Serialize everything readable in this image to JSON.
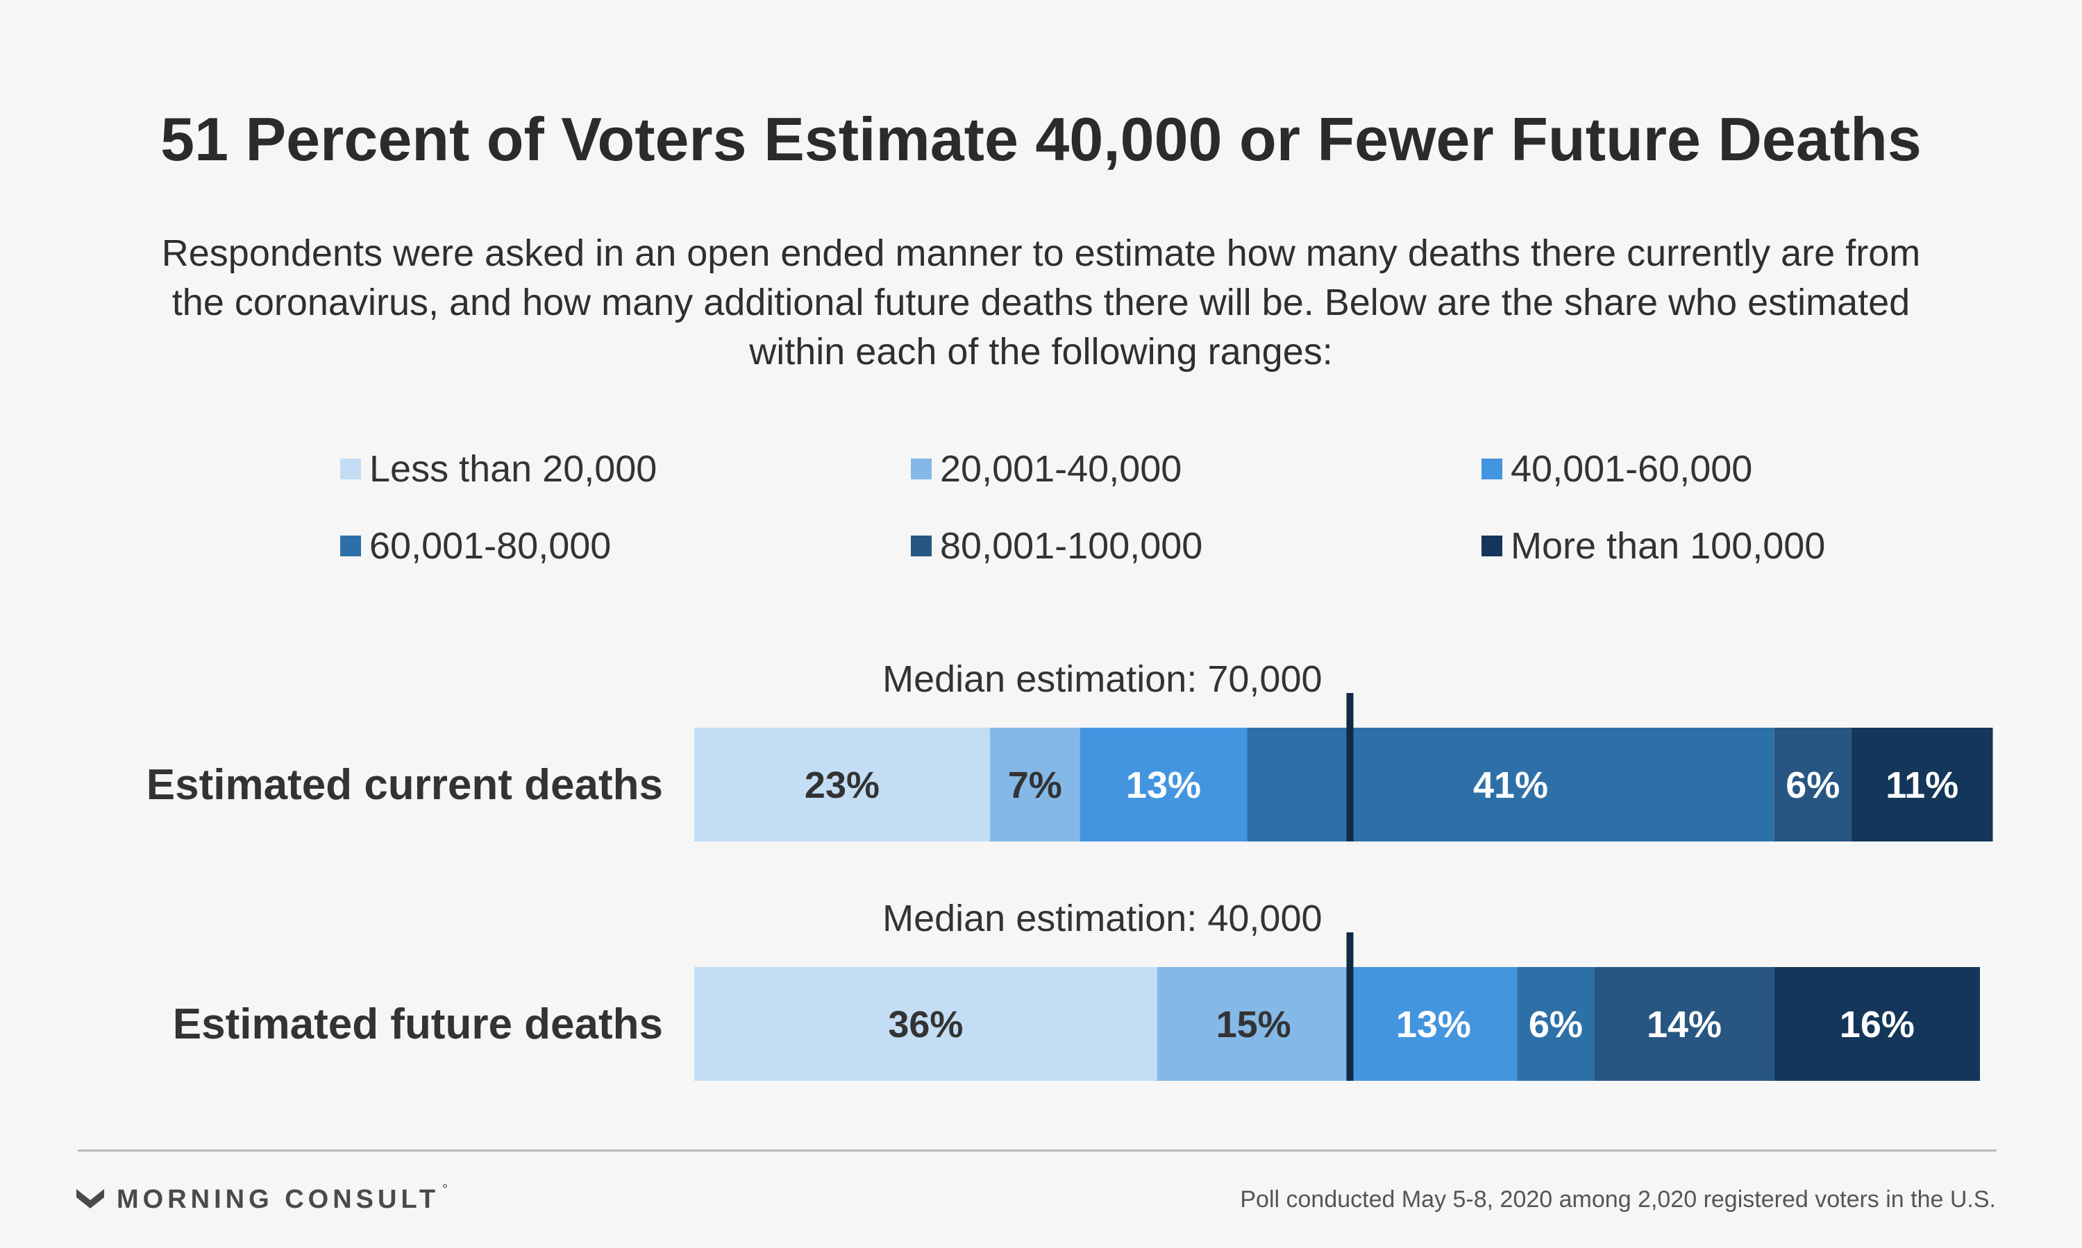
{
  "colors": {
    "background": "#f6f6f6",
    "median_marker": "#102a45"
  },
  "chart_data": {
    "type": "bar",
    "orientation": "horizontal",
    "stacked": true,
    "title": "51 Percent of Voters Estimate 40,000 or Fewer Future Deaths",
    "subtitle": "Respondents were asked in an open ended manner to estimate how many deaths there currently are from the coronavirus, and how many additional future deaths there will be. Below are the share who estimated within each of the following ranges:",
    "legend_placement": "top",
    "xlim": [
      0,
      100
    ],
    "grid": false,
    "legend": [
      {
        "name": "Less than 20,000",
        "color": "#c3ddf4"
      },
      {
        "name": "20,001-40,000",
        "color": "#84b8e6"
      },
      {
        "name": "40,001-60,000",
        "color": "#4395df"
      },
      {
        "name": "60,001-80,000",
        "color": "#2d70a7"
      },
      {
        "name": "80,001-100,000",
        "color": "#275682"
      },
      {
        "name": "More than 100,000",
        "color": "#14365a"
      }
    ],
    "categories": [
      "Estimated current deaths",
      "Estimated future deaths"
    ],
    "series": [
      {
        "name": "Less than 20,000",
        "values": [
          23,
          36
        ],
        "labels": [
          "23%",
          "36%"
        ]
      },
      {
        "name": "20,001-40,000",
        "values": [
          7,
          15
        ],
        "labels": [
          "7%",
          "15%"
        ]
      },
      {
        "name": "40,001-60,000",
        "values": [
          13,
          13
        ],
        "labels": [
          "13%",
          "13%"
        ]
      },
      {
        "name": "60,001-80,000",
        "values": [
          41,
          6
        ],
        "labels": [
          "41%",
          "6%"
        ]
      },
      {
        "name": "80,001-100,000",
        "values": [
          6,
          14
        ],
        "labels": [
          "6%",
          "14%"
        ]
      },
      {
        "name": "More than 100,000",
        "values": [
          11,
          16
        ],
        "labels": [
          "11%",
          "16%"
        ]
      }
    ],
    "medians": [
      {
        "label": "Median estimation: 70,000",
        "position": 51
      },
      {
        "label": "Median estimation: 40,000",
        "position": 51
      }
    ]
  },
  "footer": {
    "brand": "MORNING CONSULT",
    "trademark": "°",
    "source": "Poll conducted  May 5-8, 2020 among 2,020 registered voters in the U.S."
  }
}
